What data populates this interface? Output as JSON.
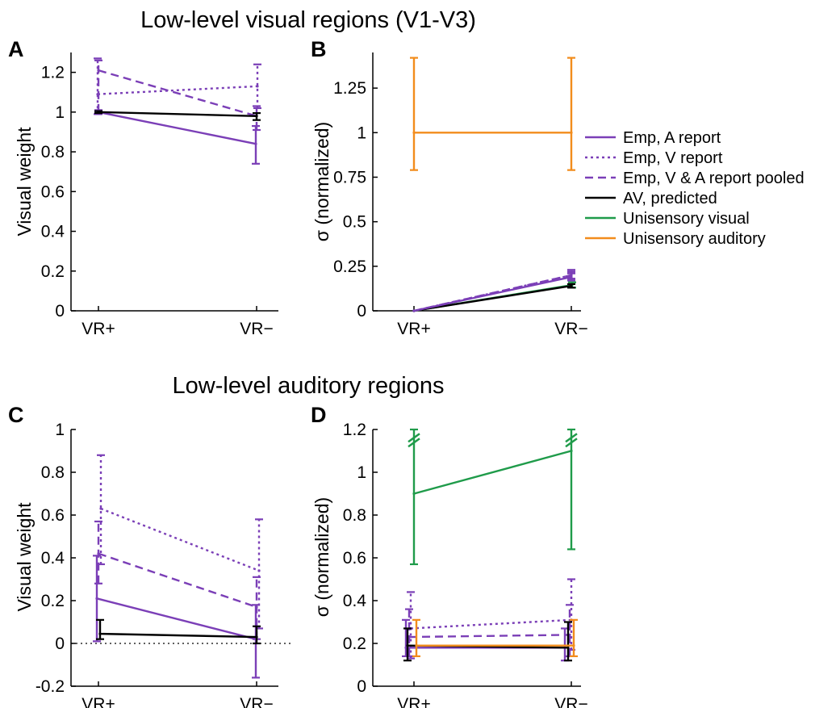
{
  "colors": {
    "emp_purple": "#7b3fb7",
    "av_black": "#000000",
    "uni_visual": "#1f9b4a",
    "uni_auditory": "#f28c1c"
  },
  "sections": {
    "top_title": "Low-level visual regions (V1-V3)",
    "bottom_title": "Low-level auditory regions"
  },
  "legend": {
    "placement": "right of panel B",
    "entries": [
      {
        "label": "Emp, A report",
        "color": "#7b3fb7",
        "dash": "solid"
      },
      {
        "label": "Emp, V report",
        "color": "#7b3fb7",
        "dash": "dotted"
      },
      {
        "label": "Emp, V & A report pooled",
        "color": "#7b3fb7",
        "dash": "dashed"
      },
      {
        "label": "AV, predicted",
        "color": "#000000",
        "dash": "solid"
      },
      {
        "label": "Unisensory visual",
        "color": "#1f9b4a",
        "dash": "solid"
      },
      {
        "label": "Unisensory auditory",
        "color": "#f28c1c",
        "dash": "solid"
      }
    ]
  },
  "chart_data": [
    {
      "panel": "A",
      "type": "line",
      "categories": [
        "VR+",
        "VR−"
      ],
      "ylabel": "Visual weight",
      "ylim": [
        0,
        1.3
      ],
      "yticks": [
        0,
        0.2,
        0.4,
        0.6,
        0.8,
        1,
        1.2
      ],
      "ytick_labels": [
        "0",
        "0.2",
        "0.4",
        "0.6",
        "0.8",
        "1",
        "1.2"
      ],
      "zero_line": false,
      "series": [
        {
          "name": "Emp, A report",
          "color": "#7b3fb7",
          "dash": "solid",
          "values": [
            1.0,
            0.84
          ],
          "err_low": [
            0.99,
            0.74
          ],
          "err_high": [
            1.01,
            0.93
          ],
          "offset": [
            0,
            -1
          ]
        },
        {
          "name": "Emp, V report",
          "color": "#7b3fb7",
          "dash": "dotted",
          "values": [
            1.09,
            1.13
          ],
          "err_low": [
            0.99,
            1.02
          ],
          "err_high": [
            1.27,
            1.24
          ],
          "offset": [
            -1,
            1
          ]
        },
        {
          "name": "Emp, V & A report pooled",
          "color": "#7b3fb7",
          "dash": "dashed",
          "values": [
            1.21,
            0.98
          ],
          "err_low": [
            1.0,
            0.91
          ],
          "err_high": [
            1.26,
            1.03
          ],
          "offset": [
            0,
            0
          ]
        },
        {
          "name": "AV, predicted",
          "color": "#000000",
          "dash": "solid",
          "values": [
            1.0,
            0.98
          ],
          "err_low": [
            0.995,
            0.96
          ],
          "err_high": [
            1.005,
            0.995
          ],
          "offset": [
            0,
            0
          ]
        }
      ]
    },
    {
      "panel": "B",
      "type": "line",
      "categories": [
        "VR+",
        "VR−"
      ],
      "ylabel": "σ (normalized)",
      "ylim": [
        0,
        1.45
      ],
      "yticks": [
        0,
        0.25,
        0.5,
        0.75,
        1,
        1.25
      ],
      "ytick_labels": [
        "0",
        "0.25",
        "0.5",
        "0.75",
        "1",
        "1.25"
      ],
      "zero_line": false,
      "series": [
        {
          "name": "Unisensory auditory",
          "color": "#f28c1c",
          "dash": "solid",
          "values": [
            1.0,
            1.0
          ],
          "err_low": [
            0.79,
            0.79
          ],
          "err_high": [
            1.42,
            1.42
          ],
          "offset": [
            0,
            0
          ]
        },
        {
          "name": "Unisensory visual",
          "color": "#1f9b4a",
          "dash": "solid",
          "values": [
            0.0,
            0.145
          ],
          "err_low": [
            0.0,
            0.13
          ],
          "err_high": [
            0.0,
            0.16
          ],
          "offset": [
            0,
            1
          ]
        },
        {
          "name": "AV, predicted",
          "color": "#000000",
          "dash": "solid",
          "values": [
            0.0,
            0.14
          ],
          "err_low": [
            0.0,
            0.13
          ],
          "err_high": [
            0.0,
            0.15
          ],
          "offset": [
            0,
            0
          ]
        },
        {
          "name": "Emp, A report",
          "color": "#7b3fb7",
          "dash": "solid",
          "values": [
            0.0,
            0.19
          ],
          "err_low": [
            0.0,
            0.17
          ],
          "err_high": [
            0.0,
            0.21
          ],
          "offset": [
            0,
            0
          ]
        },
        {
          "name": "Emp, V report",
          "color": "#7b3fb7",
          "dash": "dotted",
          "values": [
            0.0,
            0.2
          ],
          "err_low": [
            0.0,
            0.18
          ],
          "err_high": [
            0.0,
            0.22
          ],
          "offset": [
            0,
            0
          ]
        },
        {
          "name": "Emp, V & A report pooled",
          "color": "#7b3fb7",
          "dash": "dashed",
          "values": [
            0.0,
            0.2
          ],
          "err_low": [
            0.0,
            0.18
          ],
          "err_high": [
            0.0,
            0.23
          ],
          "offset": [
            0,
            0
          ]
        }
      ]
    },
    {
      "panel": "C",
      "type": "line",
      "categories": [
        "VR+",
        "VR−"
      ],
      "ylabel": "Visual weight",
      "ylim": [
        -0.2,
        1.0
      ],
      "yticks": [
        -0.2,
        0,
        0.2,
        0.4,
        0.6,
        0.8,
        1
      ],
      "ytick_labels": [
        "-0.2",
        "0",
        "0.2",
        "0.4",
        "0.6",
        "0.8",
        "1"
      ],
      "zero_line": true,
      "series": [
        {
          "name": "Emp, A report",
          "color": "#7b3fb7",
          "dash": "solid",
          "values": [
            0.21,
            0.02
          ],
          "err_low": [
            0.01,
            -0.16
          ],
          "err_high": [
            0.41,
            0.18
          ],
          "offset": [
            -2,
            -1
          ]
        },
        {
          "name": "Emp, V report",
          "color": "#7b3fb7",
          "dash": "dotted",
          "values": [
            0.63,
            0.34
          ],
          "err_low": [
            0.37,
            0.07
          ],
          "err_high": [
            0.88,
            0.58
          ],
          "offset": [
            3,
            3
          ]
        },
        {
          "name": "Emp, V & A report pooled",
          "color": "#7b3fb7",
          "dash": "dashed",
          "values": [
            0.42,
            0.17
          ],
          "err_low": [
            0.28,
            0.02
          ],
          "err_high": [
            0.57,
            0.31
          ],
          "offset": [
            0,
            0
          ]
        },
        {
          "name": "AV, predicted",
          "color": "#000000",
          "dash": "solid",
          "values": [
            0.045,
            0.03
          ],
          "err_low": [
            0.02,
            0.0
          ],
          "err_high": [
            0.11,
            0.08
          ],
          "offset": [
            2,
            0
          ]
        }
      ]
    },
    {
      "panel": "D",
      "type": "line",
      "categories": [
        "VR+",
        "VR−"
      ],
      "ylabel": "σ (normalized)",
      "ylim": [
        0,
        1.2
      ],
      "yticks": [
        0,
        0.2,
        0.4,
        0.6,
        0.8,
        1,
        1.2
      ],
      "ytick_labels": [
        "0",
        "0.2",
        "0.4",
        "0.6",
        "0.8",
        "1",
        "1.2"
      ],
      "zero_line": false,
      "break_marks": true,
      "series": [
        {
          "name": "Unisensory visual",
          "color": "#1f9b4a",
          "dash": "solid",
          "values": [
            0.9,
            1.1
          ],
          "err_low": [
            0.57,
            0.64
          ],
          "err_high": [
            1.2,
            1.2
          ],
          "offset": [
            0,
            0
          ]
        },
        {
          "name": "Emp, A report",
          "color": "#7b3fb7",
          "dash": "solid",
          "values": [
            0.18,
            0.18
          ],
          "err_low": [
            0.14,
            0.12
          ],
          "err_high": [
            0.31,
            0.27
          ],
          "offset": [
            -10,
            -8
          ]
        },
        {
          "name": "Emp, V report",
          "color": "#7b3fb7",
          "dash": "dotted",
          "values": [
            0.27,
            0.31
          ],
          "err_low": [
            0.13,
            0.17
          ],
          "err_high": [
            0.44,
            0.5
          ],
          "offset": [
            -4,
            0
          ]
        },
        {
          "name": "Emp, V & A report pooled",
          "color": "#7b3fb7",
          "dash": "dashed",
          "values": [
            0.23,
            0.24
          ],
          "err_low": [
            0.14,
            0.14
          ],
          "err_high": [
            0.36,
            0.38
          ],
          "offset": [
            -6,
            -2
          ]
        },
        {
          "name": "AV, predicted",
          "color": "#000000",
          "dash": "solid",
          "values": [
            0.19,
            0.18
          ],
          "err_low": [
            0.12,
            0.12
          ],
          "err_high": [
            0.27,
            0.3
          ],
          "offset": [
            -8,
            -4
          ]
        },
        {
          "name": "Unisensory auditory",
          "color": "#f28c1c",
          "dash": "solid",
          "values": [
            0.19,
            0.19
          ],
          "err_low": [
            0.14,
            0.14
          ],
          "err_high": [
            0.31,
            0.31
          ],
          "offset": [
            3,
            3
          ]
        }
      ]
    }
  ]
}
